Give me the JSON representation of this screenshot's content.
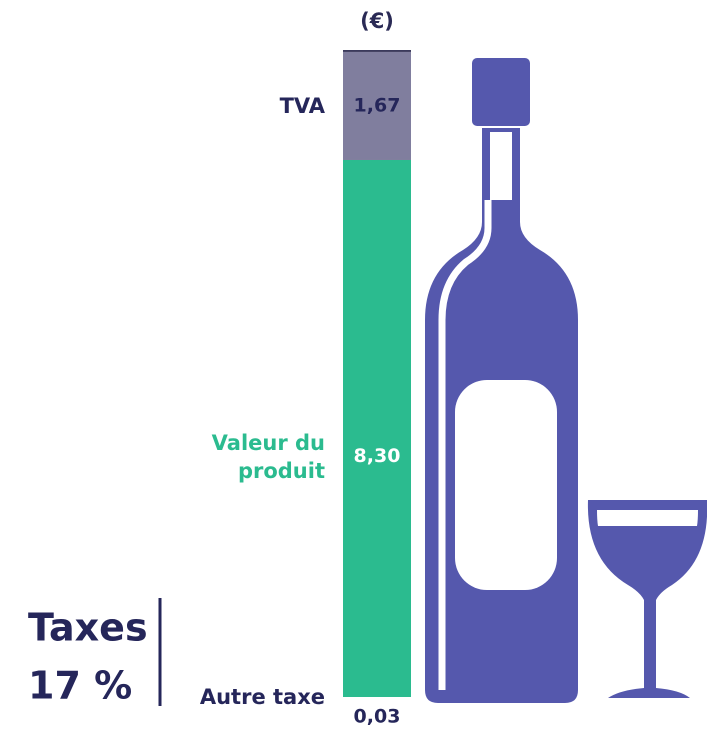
{
  "chart_data": {
    "type": "stacked-bar",
    "unit": "(€)",
    "series": [
      {
        "name": "Valeur du produit",
        "color": "#2bbb8f",
        "values": [
          8.3
        ],
        "value_labels": [
          "8,30"
        ]
      },
      {
        "name": "TVA",
        "color": "#807e9e",
        "values": [
          1.67
        ],
        "value_labels": [
          "1,67"
        ]
      },
      {
        "name": "Autre taxe",
        "color": "#3b3a5c",
        "values": [
          0.03
        ],
        "value_labels": [
          "0,03"
        ]
      }
    ],
    "ylim": [
      0,
      10
    ],
    "taxes": {
      "label": "Taxes",
      "value": 17,
      "value_label": "17 %"
    }
  }
}
